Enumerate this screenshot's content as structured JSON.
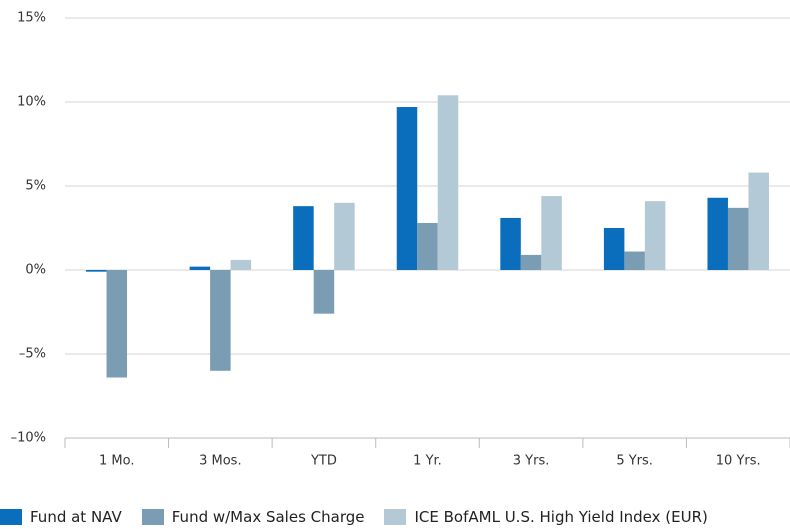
{
  "chart_data": {
    "type": "bar",
    "categories": [
      "1 Mo.",
      "3 Mos.",
      "YTD",
      "1 Yr.",
      "3 Yrs.",
      "5 Yrs.",
      "10 Yrs."
    ],
    "series": [
      {
        "name": "Fund at NAV",
        "color": "#0a6ebd",
        "values": [
          -0.1,
          0.2,
          3.8,
          9.7,
          3.1,
          2.5,
          4.3
        ]
      },
      {
        "name": "Fund w/Max Sales Charge",
        "color": "#7a9db3",
        "values": [
          -6.4,
          -6.0,
          -2.6,
          2.8,
          0.9,
          1.1,
          3.7
        ]
      },
      {
        "name": "ICE BofAML U.S. High Yield Index (EUR)",
        "color": "#b3c9d6",
        "values": [
          0,
          0.6,
          4.0,
          10.4,
          4.4,
          4.1,
          5.8
        ]
      }
    ],
    "ylim": [
      -10,
      15
    ],
    "yticks": [
      {
        "value": -10,
        "label": "–10%"
      },
      {
        "value": -5,
        "label": "–5%"
      },
      {
        "value": 0,
        "label": "0%"
      },
      {
        "value": 5,
        "label": "5%"
      },
      {
        "value": 10,
        "label": "10%"
      },
      {
        "value": 15,
        "label": "15%"
      }
    ],
    "grid": true,
    "legend": "bottom"
  }
}
